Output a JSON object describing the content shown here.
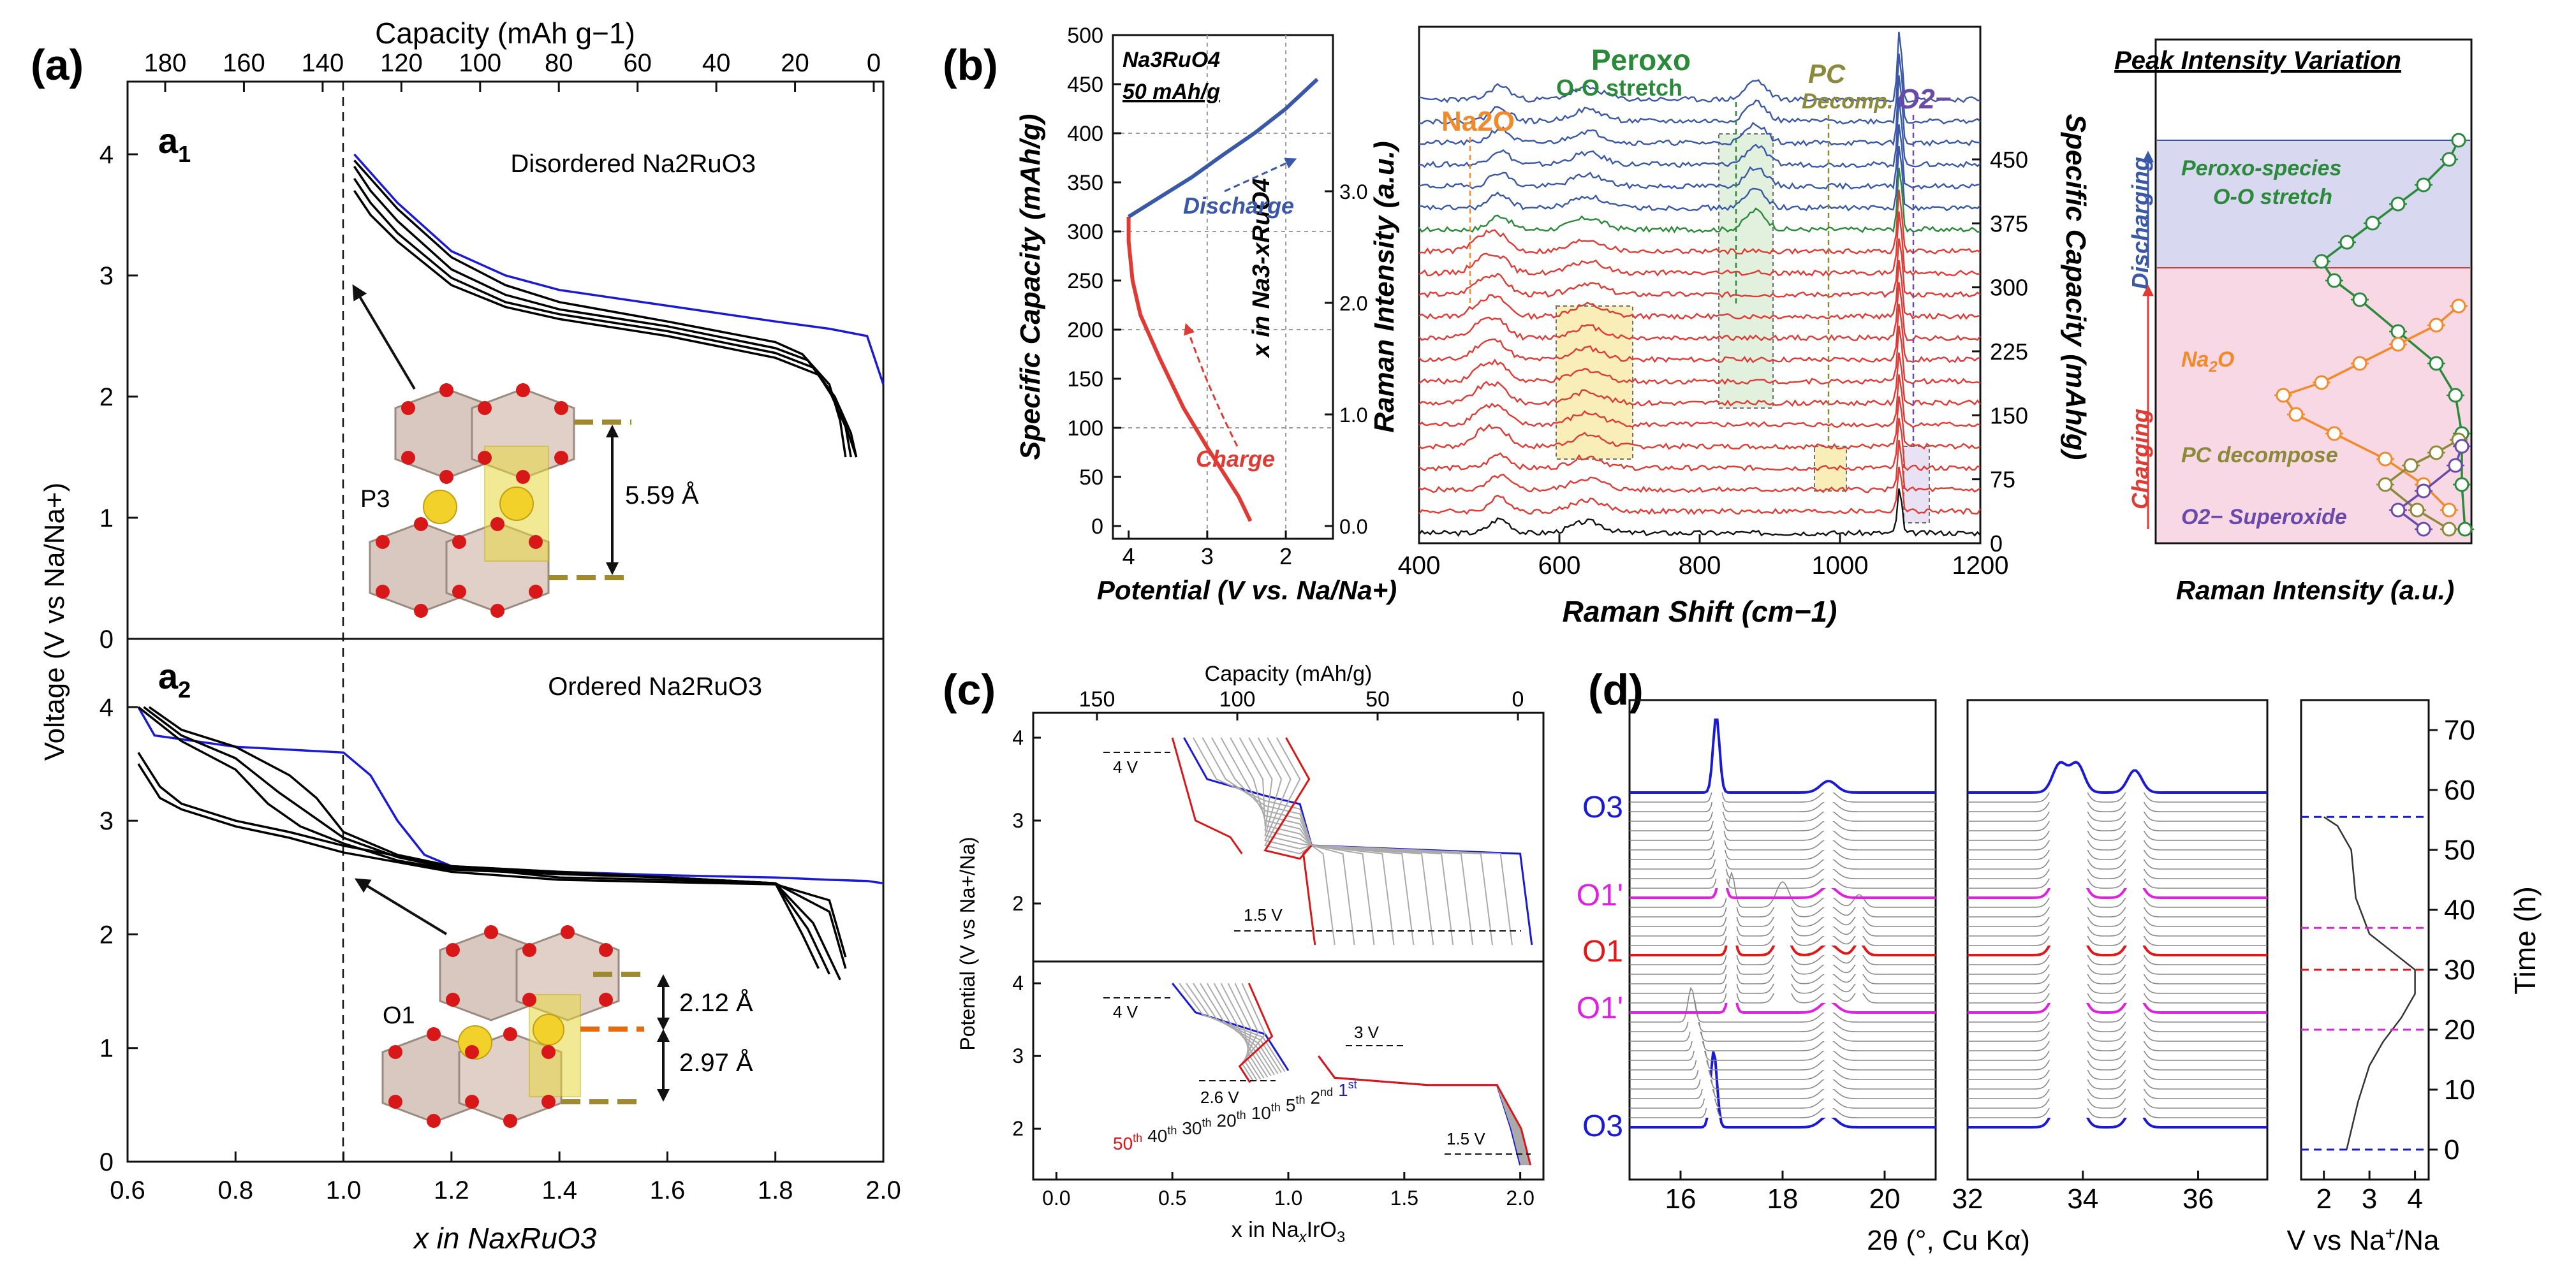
{
  "figure": {
    "panel_labels": [
      "(a)",
      "(b)",
      "(c)",
      "(d)"
    ]
  },
  "chart_data": [
    {
      "id": "a1",
      "type": "line",
      "panel_label": "a1",
      "title": "Disordered Na2RuO3",
      "xlabel": "x in NaxRuO3",
      "top_xlabel": "Capacity (mAh g−1)",
      "ylabel": "Voltage (V vs Na/Na+)",
      "xlim": [
        0.6,
        2.0
      ],
      "ylim": [
        0,
        4.6
      ],
      "xticks": [
        "0.6",
        "0.8",
        "1.0",
        "1.2",
        "1.4",
        "1.6",
        "1.8",
        "2.0"
      ],
      "top_ticks": [
        "180",
        "160",
        "140",
        "120",
        "100",
        "80",
        "60",
        "40",
        "20",
        "0"
      ],
      "yticks": [
        "0",
        "1",
        "2",
        "3",
        "4"
      ],
      "vline_x": 1.0,
      "annotations": [
        "P3",
        "5.59 Å"
      ],
      "series": [
        {
          "color": "#1a1ad6",
          "x": [
            1.02,
            1.05,
            1.1,
            1.2,
            1.3,
            1.4,
            1.6,
            1.8,
            1.9,
            1.97,
            2.0
          ],
          "y": [
            4.0,
            3.85,
            3.6,
            3.2,
            3.0,
            2.88,
            2.75,
            2.62,
            2.56,
            2.5,
            2.1
          ]
        },
        {
          "color": "#000000",
          "x": [
            1.02,
            1.05,
            1.1,
            1.2,
            1.3,
            1.4,
            1.6,
            1.8,
            1.85,
            1.9,
            1.92,
            1.93
          ],
          "y": [
            3.95,
            3.8,
            3.55,
            3.15,
            2.92,
            2.78,
            2.62,
            2.45,
            2.35,
            2.1,
            1.8,
            1.5
          ]
        },
        {
          "color": "#000000",
          "x": [
            1.02,
            1.05,
            1.1,
            1.2,
            1.3,
            1.4,
            1.6,
            1.8,
            1.86,
            1.9,
            1.93,
            1.94
          ],
          "y": [
            3.9,
            3.7,
            3.45,
            3.05,
            2.84,
            2.72,
            2.58,
            2.4,
            2.3,
            2.05,
            1.75,
            1.5
          ]
        },
        {
          "color": "#000000",
          "x": [
            1.02,
            1.05,
            1.1,
            1.2,
            1.3,
            1.4,
            1.6,
            1.8,
            1.87,
            1.91,
            1.94,
            1.95
          ],
          "y": [
            3.8,
            3.6,
            3.35,
            2.98,
            2.78,
            2.68,
            2.54,
            2.36,
            2.24,
            2.0,
            1.7,
            1.5
          ]
        },
        {
          "color": "#000000",
          "x": [
            1.02,
            1.05,
            1.1,
            1.2,
            1.3,
            1.4,
            1.6,
            1.8,
            1.88,
            1.92,
            1.95
          ],
          "y": [
            3.7,
            3.5,
            3.28,
            2.92,
            2.74,
            2.64,
            2.5,
            2.32,
            2.18,
            1.9,
            1.5
          ]
        }
      ]
    },
    {
      "id": "a2",
      "type": "line",
      "panel_label": "a2",
      "title": "Ordered Na2RuO3",
      "xlabel": "x in NaxRuO3",
      "xlim": [
        0.6,
        2.0
      ],
      "ylim": [
        0,
        4.6
      ],
      "xticks": [
        "0.6",
        "0.8",
        "1.0",
        "1.2",
        "1.4",
        "1.6",
        "1.8",
        "2.0"
      ],
      "yticks": [
        "0",
        "1",
        "2",
        "3",
        "4"
      ],
      "vline_x": 1.0,
      "annotations": [
        "O1",
        "2.12 Å",
        "2.97 Å"
      ],
      "series": [
        {
          "color": "#1a1ad6",
          "x": [
            0.62,
            0.65,
            0.8,
            1.0,
            1.05,
            1.1,
            1.15,
            1.2,
            1.4,
            1.6,
            1.8,
            1.9,
            1.97,
            2.0
          ],
          "y": [
            4.0,
            3.75,
            3.65,
            3.6,
            3.4,
            3.0,
            2.7,
            2.6,
            2.55,
            2.52,
            2.5,
            2.48,
            2.47,
            2.45
          ]
        },
        {
          "color": "#000000",
          "x": [
            0.64,
            0.7,
            0.8,
            0.9,
            0.95,
            1.0,
            1.1,
            1.2,
            1.4,
            1.6,
            1.8,
            1.85,
            1.88
          ],
          "y": [
            4.0,
            3.8,
            3.65,
            3.4,
            3.2,
            2.9,
            2.7,
            2.6,
            2.55,
            2.5,
            2.45,
            2.0,
            1.7
          ]
        },
        {
          "color": "#000000",
          "x": [
            0.63,
            0.7,
            0.8,
            0.88,
            0.94,
            1.0,
            1.1,
            1.2,
            1.4,
            1.6,
            1.8,
            1.86,
            1.9
          ],
          "y": [
            4.0,
            3.75,
            3.55,
            3.25,
            3.05,
            2.85,
            2.68,
            2.58,
            2.54,
            2.5,
            2.45,
            2.05,
            1.65
          ]
        },
        {
          "color": "#000000",
          "x": [
            0.62,
            0.7,
            0.8,
            0.86,
            0.92,
            1.0,
            1.1,
            1.2,
            1.4,
            1.6,
            1.8,
            1.87,
            1.92
          ],
          "y": [
            4.0,
            3.7,
            3.45,
            3.15,
            2.95,
            2.8,
            2.65,
            2.57,
            2.53,
            2.5,
            2.45,
            2.1,
            1.6
          ]
        },
        {
          "color": "#000000",
          "x": [
            0.62,
            0.66,
            0.7,
            0.8,
            0.9,
            1.0,
            1.2,
            1.4,
            1.6,
            1.8,
            1.9,
            1.93
          ],
          "y": [
            3.6,
            3.3,
            3.15,
            3.0,
            2.9,
            2.78,
            2.6,
            2.5,
            2.48,
            2.45,
            2.2,
            1.7
          ]
        },
        {
          "color": "#000000",
          "x": [
            0.62,
            0.66,
            0.7,
            0.8,
            0.9,
            1.0,
            1.2,
            1.4,
            1.6,
            1.8,
            1.9,
            1.93
          ],
          "y": [
            3.5,
            3.2,
            3.1,
            2.95,
            2.85,
            2.72,
            2.55,
            2.48,
            2.46,
            2.44,
            2.3,
            1.8
          ]
        }
      ]
    },
    {
      "id": "b-left",
      "type": "line",
      "inset_title": "Na3RuO4",
      "inset_subtitle": "50 mAh/g",
      "xlabel": "Potential (V vs. Na/Na+)",
      "ylabel": "Specific Capacity (mAh/g)",
      "right_ylabel": "x in Na3-xRuO4",
      "xlim": [
        4.2,
        1.4
      ],
      "ylim": [
        0,
        500
      ],
      "xticks": [
        "4",
        "3",
        "2"
      ],
      "yticks": [
        "0",
        "50",
        "100",
        "150",
        "200",
        "250",
        "300",
        "350",
        "400",
        "450",
        "500"
      ],
      "right_ticks": [
        "0.0",
        "1.0",
        "2.0",
        "3.0"
      ],
      "series": [
        {
          "name": "Charge",
          "color": "#e03a34",
          "x": [
            2.45,
            2.6,
            2.8,
            3.0,
            3.3,
            3.6,
            3.85,
            3.95,
            4.0,
            4.0
          ],
          "y": [
            5,
            30,
            55,
            80,
            120,
            170,
            215,
            250,
            290,
            315
          ]
        },
        {
          "name": "Discharge",
          "color": "#3a58a8",
          "x": [
            4.0,
            3.6,
            3.2,
            2.8,
            2.4,
            2.0,
            1.6
          ],
          "y": [
            315,
            335,
            355,
            378,
            400,
            425,
            455
          ]
        }
      ]
    },
    {
      "id": "b-raman",
      "type": "line",
      "xlabel": "Raman Shift (cm−1)",
      "ylabel": "Raman Intensity (a.u.)",
      "right_ylabel": "Specific Capacity (mAh/g)",
      "xlim": [
        400,
        1200
      ],
      "xticks": [
        "400",
        "600",
        "800",
        "1000",
        "1200"
      ],
      "right_ticks": [
        "0",
        "75",
        "150",
        "225",
        "300",
        "375",
        "450"
      ],
      "annotations": [
        "Na2O",
        "Peroxo",
        "O-O stretch",
        "PC",
        "Decomp.",
        "O2−"
      ],
      "series": [
        {
          "name": "charging spectra",
          "color": "#e03a34"
        },
        {
          "name": "discharging spectra",
          "color": "#3a58a8"
        },
        {
          "name": "transition spectrum",
          "color": "#2a8a3a"
        },
        {
          "name": "pristine spectrum",
          "color": "#111111"
        }
      ]
    },
    {
      "id": "b-intensity",
      "type": "line",
      "title": "Peak Intensity Variation",
      "xlabel": "Raman Intensity (a.u.)",
      "regions": [
        "Charging",
        "Discharging"
      ],
      "series": [
        {
          "name": "Peroxo-species O-O stretch",
          "color": "#2a8a3a"
        },
        {
          "name": "Na2O",
          "color": "#f08a2a"
        },
        {
          "name": "PC decompose",
          "color": "#8a8a3a"
        },
        {
          "name": "O2− Superoxide",
          "color": "#6a4aa8"
        }
      ]
    },
    {
      "id": "c",
      "type": "line",
      "xlabel": "x in NaxIrO3",
      "top_xlabel": "Capacity (mAh/g)",
      "ylabel": "Potential (V vs Na+/Na)",
      "xlim": [
        -0.1,
        2.1
      ],
      "xticks": [
        "0.0",
        "0.5",
        "1.0",
        "1.5",
        "2.0"
      ],
      "top_ticks": [
        "150",
        "100",
        "50",
        "0"
      ],
      "yticks": [
        "2",
        "3",
        "4"
      ],
      "annotations": [
        "4 V",
        "1.5 V",
        "4 V",
        "2.6 V",
        "3 V",
        "1.5 V"
      ],
      "legend_cycles": [
        {
          "label": "50",
          "sup": "th",
          "color": "#d81818"
        },
        {
          "label": "40",
          "sup": "th",
          "color": "#111111"
        },
        {
          "label": "30",
          "sup": "th",
          "color": "#111111"
        },
        {
          "label": "20",
          "sup": "th",
          "color": "#111111"
        },
        {
          "label": "10",
          "sup": "th",
          "color": "#111111"
        },
        {
          "label": "5",
          "sup": "th",
          "color": "#111111"
        },
        {
          "label": "2",
          "sup": "nd",
          "color": "#111111"
        },
        {
          "label": "1",
          "sup": "st",
          "color": "#1a1ad6"
        }
      ]
    },
    {
      "id": "d",
      "type": "line",
      "xlabel": "2θ (°, Cu Kα)",
      "right_xlabel": "V vs Na+/Na",
      "ylabel_right": "Time (h)",
      "xticks_left": [
        "16",
        "18",
        "20"
      ],
      "xticks_mid": [
        "32",
        "34",
        "36"
      ],
      "xticks_v": [
        "2",
        "3",
        "4"
      ],
      "time_ticks": [
        "0",
        "10",
        "20",
        "30",
        "40",
        "50",
        "60",
        "70"
      ],
      "phase_labels": [
        {
          "text": "O3",
          "color": "#1a1ad6"
        },
        {
          "text": "O1'",
          "color": "#e020e0"
        },
        {
          "text": "O1",
          "color": "#e01818"
        },
        {
          "text": "O1'",
          "color": "#e020e0"
        },
        {
          "text": "O3",
          "color": "#1a1ad6"
        }
      ]
    }
  ]
}
